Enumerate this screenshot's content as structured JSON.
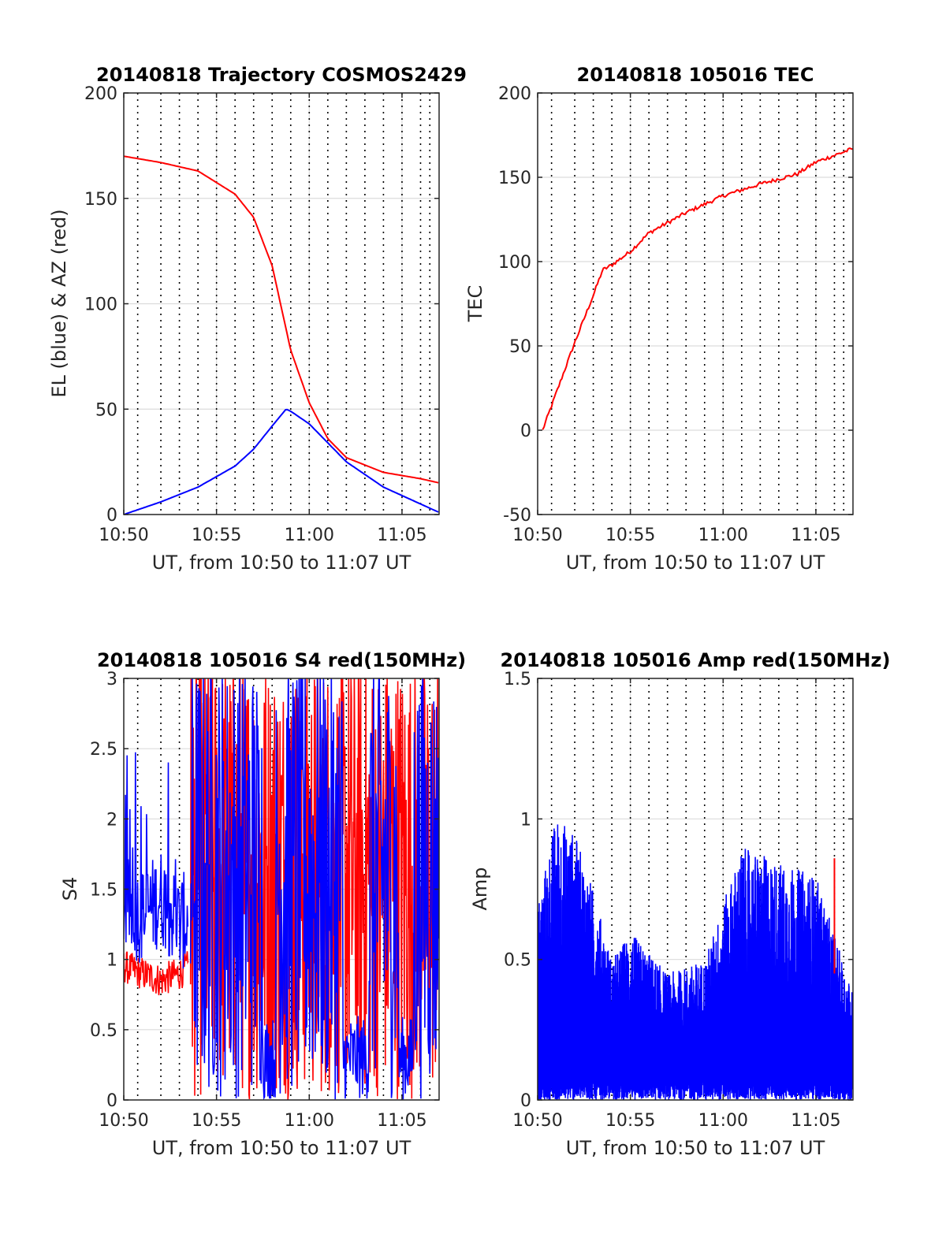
{
  "colors": {
    "red": "#ff0000",
    "blue": "#0000ff",
    "grid": "#dcdcdc",
    "axis": "#262626",
    "dotted": "#000000"
  },
  "chart_data": [
    {
      "type": "line",
      "title": "20140818 Trajectory COSMOS2429",
      "xlabel": "UT, from 10:50 to 11:07 UT",
      "ylabel": "EL (blue) & AZ (red)",
      "xlim_minutes_from_1050": [
        0,
        17
      ],
      "ylim": [
        0,
        200
      ],
      "yticks": [
        "0",
        "50",
        "100",
        "150",
        "200"
      ],
      "xticks": [
        "10:50",
        "10:55",
        "11:00",
        "11:05"
      ],
      "grid": true,
      "series": [
        {
          "color": "red",
          "x": [
            "10:50",
            "10:52",
            "10:54",
            "10:56",
            "10:57",
            "10:58",
            "10:59",
            "11:00",
            "11:01",
            "11:02",
            "11:04",
            "11:06",
            "11:07"
          ],
          "values": [
            170,
            167,
            163,
            152,
            141,
            118,
            78,
            53,
            36,
            27,
            20,
            17,
            15
          ]
        },
        {
          "color": "blue",
          "x": [
            "10:50",
            "10:52",
            "10:54",
            "10:56",
            "10:57",
            "10:58",
            "10:58:45",
            "10:59",
            "11:00",
            "11:01",
            "11:02",
            "11:04",
            "11:06",
            "11:07"
          ],
          "values": [
            0,
            6,
            13,
            23,
            31,
            42,
            50,
            49,
            43,
            34,
            25,
            13,
            5,
            1
          ]
        }
      ]
    },
    {
      "type": "line",
      "title": "20140818 105016 TEC",
      "xlabel": "UT, from 10:50 to 11:07 UT",
      "ylabel": "TEC",
      "xlim_minutes_from_1050": [
        0,
        17
      ],
      "ylim": [
        -50,
        200
      ],
      "yticks": [
        "-50",
        "0",
        "50",
        "100",
        "150",
        "200"
      ],
      "xticks": [
        "10:50",
        "10:55",
        "11:00",
        "11:05"
      ],
      "grid": true,
      "series": [
        {
          "color": "red",
          "x": [
            "10:50:16",
            "10:51",
            "10:52",
            "10:53",
            "10:53:30",
            "10:54",
            "10:55",
            "10:56",
            "10:58",
            "11:00",
            "11:02",
            "11:04",
            "11:05",
            "11:07"
          ],
          "values": [
            0,
            22,
            52,
            80,
            95,
            98,
            106,
            117,
            129,
            139,
            146,
            152,
            159,
            167
          ]
        }
      ]
    },
    {
      "type": "line",
      "title": "20140818 105016 S4 red(150MHz)",
      "xlabel": "UT, from 10:50 to 11:07 UT",
      "ylabel": "S4",
      "xlim_minutes_from_1050": [
        0,
        17
      ],
      "ylim": [
        0,
        3
      ],
      "yticks": [
        "0",
        "0.5",
        "1",
        "1.5",
        "2",
        "2.5",
        "3"
      ],
      "xticks": [
        "10:50",
        "10:55",
        "11:00",
        "11:05"
      ],
      "grid": true,
      "series": [
        {
          "color": "red",
          "x": [
            "10:50",
            "10:51",
            "10:52",
            "10:53",
            "10:53:30"
          ],
          "values": [
            0.95,
            0.9,
            0.85,
            0.9,
            0.95
          ]
        },
        {
          "color": "blue",
          "x": [
            "10:50",
            "10:51",
            "10:52",
            "10:53",
            "10:53:30"
          ],
          "values": [
            1.4,
            1.3,
            1.45,
            1.25,
            1.3
          ]
        }
      ]
    },
    {
      "type": "line",
      "title": "20140818 105016 Amp red(150MHz)",
      "xlabel": "UT, from 10:50 to 11:07 UT",
      "ylabel": "Amp",
      "xlim_minutes_from_1050": [
        0,
        17
      ],
      "ylim": [
        0,
        1.5
      ],
      "yticks": [
        "0",
        "0.5",
        "1",
        "1.5"
      ],
      "xticks": [
        "10:50",
        "10:55",
        "11:00",
        "11:05"
      ],
      "grid": true,
      "series": [
        {
          "color": "blue",
          "x": [
            "10:50",
            "10:51",
            "10:52",
            "10:53",
            "10:54",
            "10:55",
            "10:57",
            "10:59",
            "11:01",
            "11:03",
            "11:05",
            "11:07"
          ],
          "values": [
            0.7,
            1.02,
            0.95,
            0.75,
            0.5,
            0.6,
            0.45,
            0.5,
            0.9,
            0.85,
            0.8,
            0.38
          ]
        },
        {
          "color": "red",
          "x": [
            "11:06"
          ],
          "values": [
            0.86
          ]
        }
      ]
    }
  ]
}
